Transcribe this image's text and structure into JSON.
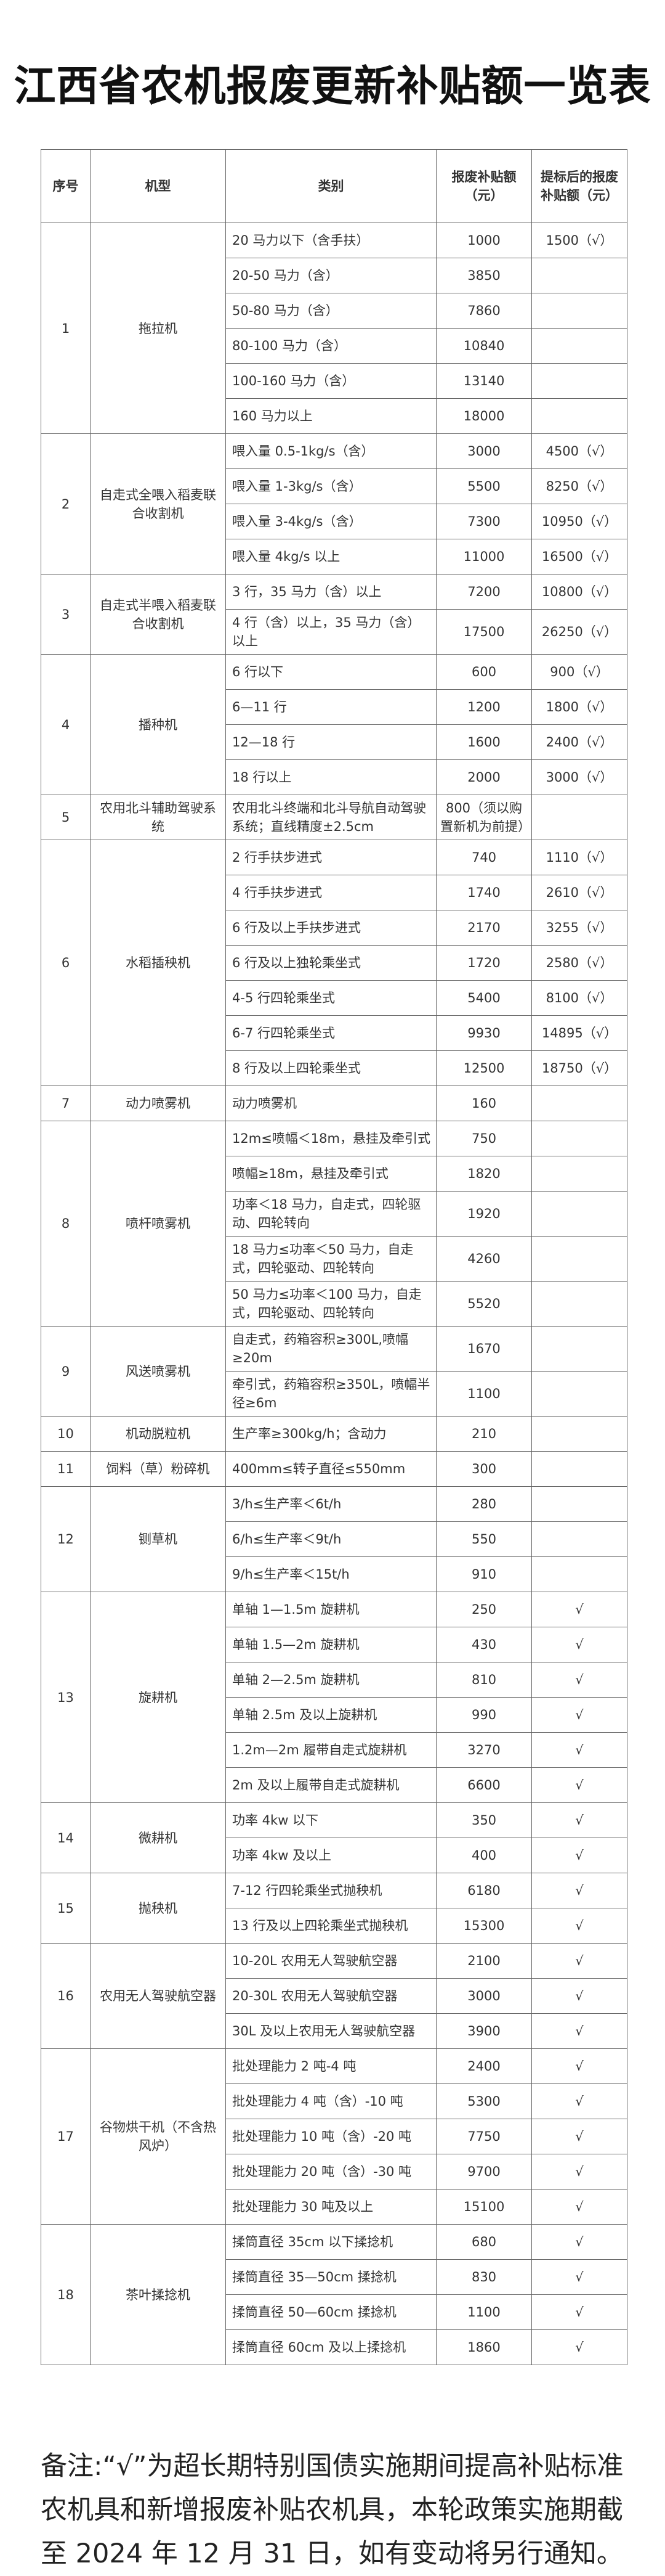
{
  "title": "江西省农机报废更新补贴额一览表",
  "headers": [
    "序号",
    "机型",
    "类别",
    "报废补贴额（元）",
    "提标后的报废补贴额（元）"
  ],
  "groups": [
    {
      "no": "1",
      "name": "拖拉机",
      "items": [
        {
          "cat": "20 马力以下（含手扶）",
          "base": "1000",
          "raised": "1500（√）"
        },
        {
          "cat": "20-50 马力（含）",
          "base": "3850",
          "raised": ""
        },
        {
          "cat": "50-80 马力（含）",
          "base": "7860",
          "raised": ""
        },
        {
          "cat": "80-100 马力（含）",
          "base": "10840",
          "raised": ""
        },
        {
          "cat": "100-160 马力（含）",
          "base": "13140",
          "raised": ""
        },
        {
          "cat": "160 马力以上",
          "base": "18000",
          "raised": ""
        }
      ]
    },
    {
      "no": "2",
      "name": "自走式全喂入稻麦联合收割机",
      "items": [
        {
          "cat": "喂入量 0.5-1kg/s（含）",
          "base": "3000",
          "raised": "4500（√）"
        },
        {
          "cat": "喂入量 1-3kg/s（含）",
          "base": "5500",
          "raised": "8250（√）"
        },
        {
          "cat": "喂入量 3-4kg/s（含）",
          "base": "7300",
          "raised": "10950（√）"
        },
        {
          "cat": "喂入量 4kg/s 以上",
          "base": "11000",
          "raised": "16500（√）"
        }
      ]
    },
    {
      "no": "3",
      "name": "自走式半喂入稻麦联合收割机",
      "items": [
        {
          "cat": "3 行，35 马力（含）以上",
          "base": "7200",
          "raised": "10800（√）"
        },
        {
          "cat": "4 行（含）以上，35 马力（含）以上",
          "base": "17500",
          "raised": "26250（√）"
        }
      ]
    },
    {
      "no": "4",
      "name": "播种机",
      "items": [
        {
          "cat": "6 行以下",
          "base": "600",
          "raised": "900（√）"
        },
        {
          "cat": "6—11 行",
          "base": "1200",
          "raised": "1800（√）"
        },
        {
          "cat": "12—18 行",
          "base": "1600",
          "raised": "2400（√）"
        },
        {
          "cat": "18 行以上",
          "base": "2000",
          "raised": "3000（√）"
        }
      ]
    },
    {
      "no": "5",
      "name": "农用北斗辅助驾驶系统",
      "items": [
        {
          "cat": "农用北斗终端和北斗导航自动驾驶系统；直线精度±2.5cm",
          "base": "800（须以购置新机为前提）",
          "raised": ""
        }
      ]
    },
    {
      "no": "6",
      "name": "水稻插秧机",
      "items": [
        {
          "cat": "2 行手扶步进式",
          "base": "740",
          "raised": "1110（√）"
        },
        {
          "cat": "4 行手扶步进式",
          "base": "1740",
          "raised": "2610（√）"
        },
        {
          "cat": "6 行及以上手扶步进式",
          "base": "2170",
          "raised": "3255（√）"
        },
        {
          "cat": "6 行及以上独轮乘坐式",
          "base": "1720",
          "raised": "2580（√）"
        },
        {
          "cat": "4-5 行四轮乘坐式",
          "base": "5400",
          "raised": "8100（√）"
        },
        {
          "cat": "6-7 行四轮乘坐式",
          "base": "9930",
          "raised": "14895（√）"
        },
        {
          "cat": "8 行及以上四轮乘坐式",
          "base": "12500",
          "raised": "18750（√）"
        }
      ]
    },
    {
      "no": "7",
      "name": "动力喷雾机",
      "items": [
        {
          "cat": "动力喷雾机",
          "base": "160",
          "raised": ""
        }
      ]
    },
    {
      "no": "8",
      "name": "喷杆喷雾机",
      "items": [
        {
          "cat": "12m≤喷幅＜18m，悬挂及牵引式",
          "base": "750",
          "raised": ""
        },
        {
          "cat": "喷幅≥18m，悬挂及牵引式",
          "base": "1820",
          "raised": ""
        },
        {
          "cat": "功率＜18 马力，自走式，四轮驱动、四轮转向",
          "base": "1920",
          "raised": ""
        },
        {
          "cat": "18 马力≤功率＜50 马力，自走式，四轮驱动、四轮转向",
          "base": "4260",
          "raised": ""
        },
        {
          "cat": "50 马力≤功率＜100 马力，自走式，四轮驱动、四轮转向",
          "base": "5520",
          "raised": ""
        }
      ]
    },
    {
      "no": "9",
      "name": "风送喷雾机",
      "items": [
        {
          "cat": "自走式，药箱容积≥300L,喷幅≥20m",
          "base": "1670",
          "raised": ""
        },
        {
          "cat": "牵引式，药箱容积≥350L，喷幅半径≥6m",
          "base": "1100",
          "raised": ""
        }
      ]
    },
    {
      "no": "10",
      "name": "机动脱粒机",
      "items": [
        {
          "cat": "生产率≥300kg/h；含动力",
          "base": "210",
          "raised": ""
        }
      ]
    },
    {
      "no": "11",
      "name": "饲料（草）粉碎机",
      "items": [
        {
          "cat": "400mm≤转子直径≤550mm",
          "base": "300",
          "raised": ""
        }
      ]
    },
    {
      "no": "12",
      "name": "铡草机",
      "items": [
        {
          "cat": "3/h≤生产率＜6t/h",
          "base": "280",
          "raised": ""
        },
        {
          "cat": "6/h≤生产率＜9t/h",
          "base": "550",
          "raised": ""
        },
        {
          "cat": "9/h≤生产率＜15t/h",
          "base": "910",
          "raised": ""
        }
      ]
    },
    {
      "no": "13",
      "name": "旋耕机",
      "items": [
        {
          "cat": "单轴 1—1.5m 旋耕机",
          "base": "250",
          "raised": "√"
        },
        {
          "cat": "单轴 1.5—2m 旋耕机",
          "base": "430",
          "raised": "√"
        },
        {
          "cat": "单轴 2—2.5m 旋耕机",
          "base": "810",
          "raised": "√"
        },
        {
          "cat": "单轴 2.5m 及以上旋耕机",
          "base": "990",
          "raised": "√"
        },
        {
          "cat": "1.2m—2m 履带自走式旋耕机",
          "base": "3270",
          "raised": "√"
        },
        {
          "cat": "2m 及以上履带自走式旋耕机",
          "base": "6600",
          "raised": "√"
        }
      ]
    },
    {
      "no": "14",
      "name": "微耕机",
      "items": [
        {
          "cat": "功率 4kw 以下",
          "base": "350",
          "raised": "√"
        },
        {
          "cat": "功率 4kw 及以上",
          "base": "400",
          "raised": "√"
        }
      ]
    },
    {
      "no": "15",
      "name": "抛秧机",
      "items": [
        {
          "cat": "7-12 行四轮乘坐式抛秧机",
          "base": "6180",
          "raised": "√"
        },
        {
          "cat": "13 行及以上四轮乘坐式抛秧机",
          "base": "15300",
          "raised": "√"
        }
      ]
    },
    {
      "no": "16",
      "name": "农用无人驾驶航空器",
      "items": [
        {
          "cat": "10-20L 农用无人驾驶航空器",
          "base": "2100",
          "raised": "√"
        },
        {
          "cat": "20-30L 农用无人驾驶航空器",
          "base": "3000",
          "raised": "√"
        },
        {
          "cat": "30L 及以上农用无人驾驶航空器",
          "base": "3900",
          "raised": "√"
        }
      ]
    },
    {
      "no": "17",
      "name": "谷物烘干机（不含热风炉）",
      "items": [
        {
          "cat": "批处理能力 2 吨-4 吨",
          "base": "2400",
          "raised": "√"
        },
        {
          "cat": "批处理能力 4 吨（含）-10 吨",
          "base": "5300",
          "raised": "√"
        },
        {
          "cat": "批处理能力 10 吨（含）-20 吨",
          "base": "7750",
          "raised": "√"
        },
        {
          "cat": "批处理能力 20 吨（含）-30 吨",
          "base": "9700",
          "raised": "√"
        },
        {
          "cat": "批处理能力 30 吨及以上",
          "base": "15100",
          "raised": "√"
        }
      ]
    },
    {
      "no": "18",
      "name": "茶叶揉捻机",
      "items": [
        {
          "cat": "揉筒直径 35cm 以下揉捻机",
          "base": "680",
          "raised": "√"
        },
        {
          "cat": "揉筒直径 35—50cm 揉捻机",
          "base": "830",
          "raised": "√"
        },
        {
          "cat": "揉筒直径 50—60cm 揉捻机",
          "base": "1100",
          "raised": "√"
        },
        {
          "cat": "揉筒直径 60cm 及以上揉捻机",
          "base": "1860",
          "raised": "√"
        }
      ]
    }
  ],
  "note": "备注:“√”为超长期特别国债实施期间提高补贴标准农机具和新增报废补贴农机具，本轮政策实施期截至 2024 年 12 月 31 日，如有变动将另行通知。"
}
